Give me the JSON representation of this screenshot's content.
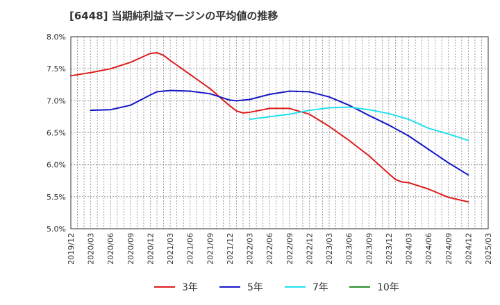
{
  "chart_data": {
    "type": "line",
    "title": "[6448]  当期純利益マージンの平均値の推移",
    "xlabel": "",
    "ylabel": "",
    "ylim": [
      5.0,
      8.0
    ],
    "yticks": [
      "5.0%",
      "5.5%",
      "6.0%",
      "6.5%",
      "7.0%",
      "7.5%",
      "8.0%"
    ],
    "xticks": [
      "2019/12",
      "2020/03",
      "2020/06",
      "2020/09",
      "2020/12",
      "2021/03",
      "2021/06",
      "2021/09",
      "2021/12",
      "2022/03",
      "2022/06",
      "2022/09",
      "2022/12",
      "2023/03",
      "2023/06",
      "2023/09",
      "2023/12",
      "2024/03",
      "2024/06",
      "2024/09",
      "2024/12",
      "2025/03"
    ],
    "grid": true,
    "legend_position": "bottom",
    "series": [
      {
        "name": "3年",
        "color": "#dd1c1c",
        "x": [
          "2019/12",
          "2020/03",
          "2020/06",
          "2020/09",
          "2020/12",
          "2021/01",
          "2021/02",
          "2021/03",
          "2021/06",
          "2021/09",
          "2021/12",
          "2022/01",
          "2022/02",
          "2022/03",
          "2022/06",
          "2022/09",
          "2022/12",
          "2023/03",
          "2023/06",
          "2023/09",
          "2023/12",
          "2024/01",
          "2024/02",
          "2024/03",
          "2024/06",
          "2024/09",
          "2024/12"
        ],
        "values": [
          7.39,
          7.44,
          7.5,
          7.6,
          7.74,
          7.75,
          7.71,
          7.63,
          7.41,
          7.19,
          6.92,
          6.84,
          6.81,
          6.82,
          6.88,
          6.88,
          6.79,
          6.6,
          6.38,
          6.14,
          5.86,
          5.77,
          5.73,
          5.72,
          5.62,
          5.49,
          5.42
        ]
      },
      {
        "name": "5年",
        "color": "#1515c8",
        "x": [
          "2020/03",
          "2020/06",
          "2020/09",
          "2020/12",
          "2021/01",
          "2021/03",
          "2021/06",
          "2021/09",
          "2021/12",
          "2022/01",
          "2022/03",
          "2022/06",
          "2022/09",
          "2022/12",
          "2023/03",
          "2023/06",
          "2023/09",
          "2023/12",
          "2024/03",
          "2024/06",
          "2024/09",
          "2024/12"
        ],
        "values": [
          6.85,
          6.86,
          6.93,
          7.09,
          7.14,
          7.16,
          7.15,
          7.11,
          7.01,
          7.0,
          7.02,
          7.1,
          7.15,
          7.14,
          7.06,
          6.93,
          6.77,
          6.62,
          6.45,
          6.24,
          6.03,
          5.84
        ]
      },
      {
        "name": "7年",
        "color": "#22e0f0",
        "x": [
          "2022/03",
          "2022/06",
          "2022/09",
          "2022/12",
          "2023/03",
          "2023/06",
          "2023/09",
          "2023/12",
          "2024/03",
          "2024/06",
          "2024/09",
          "2024/12"
        ],
        "values": [
          6.71,
          6.75,
          6.79,
          6.85,
          6.89,
          6.9,
          6.86,
          6.8,
          6.71,
          6.57,
          6.48,
          6.38
        ]
      },
      {
        "name": "10年",
        "color": "#2a8a2a",
        "x": [],
        "values": []
      }
    ]
  }
}
